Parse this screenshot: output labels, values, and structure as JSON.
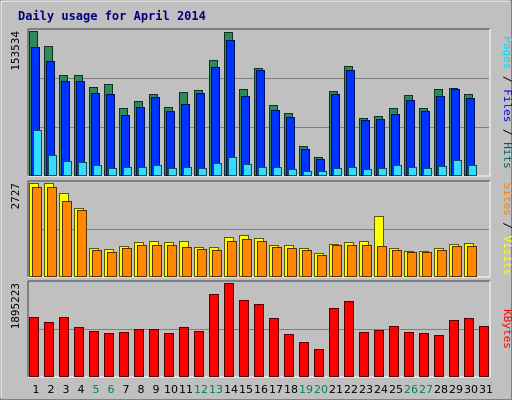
{
  "chart_data": {
    "type": "bar",
    "title": "Daily usage for April 2014",
    "categories": [
      "1",
      "2",
      "3",
      "4",
      "5",
      "6",
      "7",
      "8",
      "9",
      "10",
      "11",
      "12",
      "13",
      "14",
      "15",
      "16",
      "17",
      "18",
      "19",
      "20",
      "21",
      "22",
      "23",
      "24",
      "25",
      "26",
      "27",
      "28",
      "29",
      "30",
      "31"
    ],
    "weekend_days": [
      "5",
      "6",
      "12",
      "13",
      "19",
      "20",
      "26",
      "27"
    ],
    "panels": [
      {
        "id": "pages-files-hits",
        "y_max_label": "153534",
        "ylim": [
          0,
          153534
        ],
        "grid": true,
        "legend_labels": [
          "Pages",
          "Files",
          "Hits"
        ],
        "legend_separator": " / ",
        "legend_colors": [
          "#00e0ff",
          "#0000ff",
          "#006060"
        ],
        "series": [
          {
            "name": "Hits",
            "color": "#2e8b57",
            "values": [
              153534,
              138000,
              107000,
              107000,
              94000,
              97000,
              72000,
              79000,
              87000,
              73000,
              89000,
              91000,
              123000,
              153000,
              92000,
              114000,
              75000,
              67000,
              32000,
              20000,
              90000,
              116000,
              61000,
              64000,
              72000,
              86000,
              72000,
              92000,
              93000,
              87000,
              0
            ]
          },
          {
            "name": "Files",
            "color": "#0033ff",
            "values": [
              137000,
              122000,
              101000,
              101000,
              88000,
              87000,
              65000,
              73000,
              84000,
              69000,
              76000,
              88000,
              115000,
              144000,
              85000,
              112000,
              70000,
              63000,
              29000,
              18000,
              87000,
              112000,
              59000,
              60000,
              66000,
              81000,
              69000,
              85000,
              92000,
              83000,
              0
            ]
          },
          {
            "name": "Pages",
            "color": "#33ddff",
            "values": [
              49000,
              22000,
              16000,
              15000,
              12000,
              9000,
              10000,
              10000,
              12000,
              8000,
              10000,
              9000,
              14000,
              20000,
              13000,
              10000,
              10000,
              7000,
              5000,
              5000,
              9000,
              10000,
              7000,
              8000,
              12000,
              10000,
              9000,
              11000,
              17000,
              12000,
              0
            ]
          }
        ]
      },
      {
        "id": "visits-sites",
        "y_max_label": "2727",
        "ylim": [
          0,
          2727
        ],
        "grid": true,
        "legend_labels": [
          "Sites",
          "Visits"
        ],
        "legend_separator": " / ",
        "legend_colors": [
          "#ff8000",
          "#ffff00"
        ],
        "series": [
          {
            "name": "Visits",
            "color": "#ffff00",
            "values": [
              2727,
              2727,
              2450,
              2000,
              850,
              800,
              900,
              1020,
              1030,
              1020,
              1040,
              880,
              870,
              1160,
              1220,
              1130,
              930,
              930,
              840,
              710,
              970,
              1020,
              1050,
              1770,
              830,
              760,
              740,
              840,
              960,
              1000,
              0
            ]
          },
          {
            "name": "Sites",
            "color": "#ff8800",
            "values": [
              2600,
              2600,
              2200,
              1950,
              790,
              720,
              830,
              920,
              920,
              930,
              880,
              800,
              770,
              1050,
              1100,
              1040,
              870,
              850,
              770,
              650,
              920,
              940,
              920,
              890,
              780,
              730,
              730,
              780,
              910,
              910,
              0
            ]
          }
        ]
      },
      {
        "id": "kbytes",
        "y_max_label": "1895223",
        "ylim": [
          0,
          1895223
        ],
        "grid": true,
        "legend_labels": [
          "KBytes"
        ],
        "legend_separator": "",
        "legend_colors": [
          "#ff0000"
        ],
        "series": [
          {
            "name": "KBytes",
            "color": "#ff0000",
            "values": [
              1200000,
              1110000,
              1210000,
              1010000,
              920000,
              890000,
              910000,
              960000,
              960000,
              890000,
              1000000,
              920000,
              1670000,
              1895223,
              1550000,
              1470000,
              1180000,
              860000,
              710000,
              570000,
              1390000,
              1530000,
              910000,
              940000,
              1020000,
              910000,
              890000,
              850000,
              1150000,
              1180000,
              1020000
            ]
          }
        ]
      }
    ]
  }
}
